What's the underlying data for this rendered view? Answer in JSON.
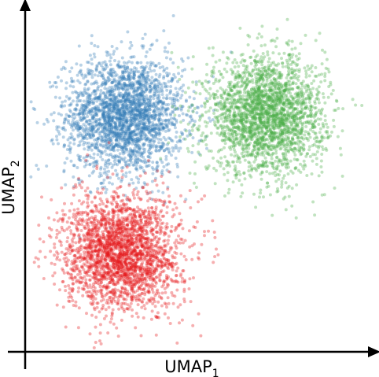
{
  "chart_data": {
    "type": "scatter",
    "title": "",
    "xlabel": "UMAP",
    "xlabel_subscript": "1",
    "ylabel": "UMAP",
    "ylabel_subscript": "2",
    "xlim": [
      0,
      10
    ],
    "ylim": [
      0,
      10
    ],
    "ticks": "none",
    "grid": false,
    "legend": "none",
    "marker_opacity": 0.35,
    "series": [
      {
        "color": "#377eb8",
        "center": [
          2.9,
          6.9
        ],
        "spread": [
          0.85,
          0.85
        ],
        "n_points": 2500
      },
      {
        "color": "#4daf4a",
        "center": [
          7.0,
          6.9
        ],
        "spread": [
          0.85,
          0.85
        ],
        "n_points": 2500
      },
      {
        "color": "#e41a1c",
        "center": [
          2.8,
          2.9
        ],
        "spread": [
          0.85,
          0.85
        ],
        "n_points": 2500
      }
    ]
  }
}
